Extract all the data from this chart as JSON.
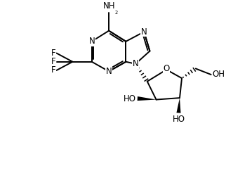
{
  "bg_color": "#ffffff",
  "line_color": "#000000",
  "line_width": 1.4,
  "font_size": 8.5,
  "figsize": [
    3.22,
    2.7
  ],
  "dpi": 100,
  "xlim": [
    0,
    10
  ],
  "ylim": [
    0,
    8.5
  ]
}
